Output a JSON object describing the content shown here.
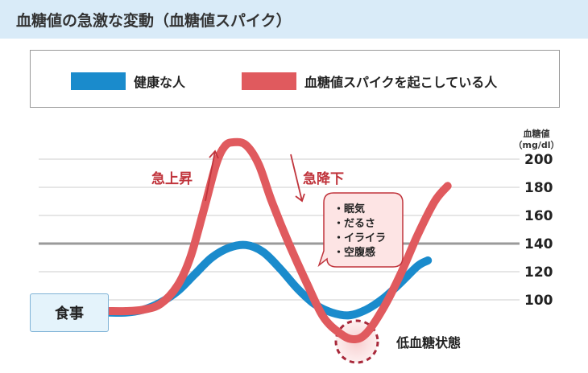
{
  "header": {
    "title": "血糖値の急激な変動（血糖値スパイク）"
  },
  "legend": {
    "items": [
      {
        "label": "健康な人",
        "color": "#1a8bcc"
      },
      {
        "label": "血糖値スパイクを起こしている人",
        "color": "#e05a5e"
      }
    ]
  },
  "meal_label": "食事",
  "annotations": {
    "rise": "急上昇",
    "fall": "急降下",
    "low": "低血糖状態",
    "symptoms": [
      "・眠気",
      "・だるさ",
      "・イライラ",
      "・空腹感"
    ]
  },
  "chart_data": {
    "type": "line",
    "ylabel": "血糖値",
    "yunit": "（mg/dl）",
    "yticks": [
      100,
      120,
      140,
      160,
      180,
      200
    ],
    "ylim": [
      78,
      218
    ],
    "reference_line": 140,
    "grid": true,
    "legend_position": "top",
    "series": [
      {
        "name": "健康な人",
        "color": "#1a8bcc",
        "points": [
          [
            0,
            91
          ],
          [
            20,
            91
          ],
          [
            40,
            93
          ],
          [
            60,
            98
          ],
          [
            80,
            106
          ],
          [
            100,
            118
          ],
          [
            120,
            130
          ],
          [
            140,
            137
          ],
          [
            160,
            139
          ],
          [
            180,
            134
          ],
          [
            200,
            122
          ],
          [
            220,
            108
          ],
          [
            240,
            97
          ],
          [
            260,
            91
          ],
          [
            280,
            89
          ],
          [
            300,
            93
          ],
          [
            320,
            101
          ],
          [
            340,
            112
          ],
          [
            360,
            124
          ],
          [
            372,
            128
          ]
        ]
      },
      {
        "name": "血糖値スパイクを起こしている人",
        "color": "#e05a5e",
        "points": [
          [
            0,
            92
          ],
          [
            20,
            92
          ],
          [
            40,
            93
          ],
          [
            60,
            97
          ],
          [
            80,
            110
          ],
          [
            95,
            130
          ],
          [
            110,
            162
          ],
          [
            125,
            196
          ],
          [
            135,
            209
          ],
          [
            145,
            212
          ],
          [
            160,
            210
          ],
          [
            175,
            196
          ],
          [
            190,
            170
          ],
          [
            210,
            140
          ],
          [
            230,
            113
          ],
          [
            250,
            88
          ],
          [
            270,
            76
          ],
          [
            285,
            72
          ],
          [
            300,
            76
          ],
          [
            320,
            94
          ],
          [
            340,
            118
          ],
          [
            360,
            146
          ],
          [
            380,
            170
          ],
          [
            395,
            181
          ]
        ]
      }
    ]
  }
}
